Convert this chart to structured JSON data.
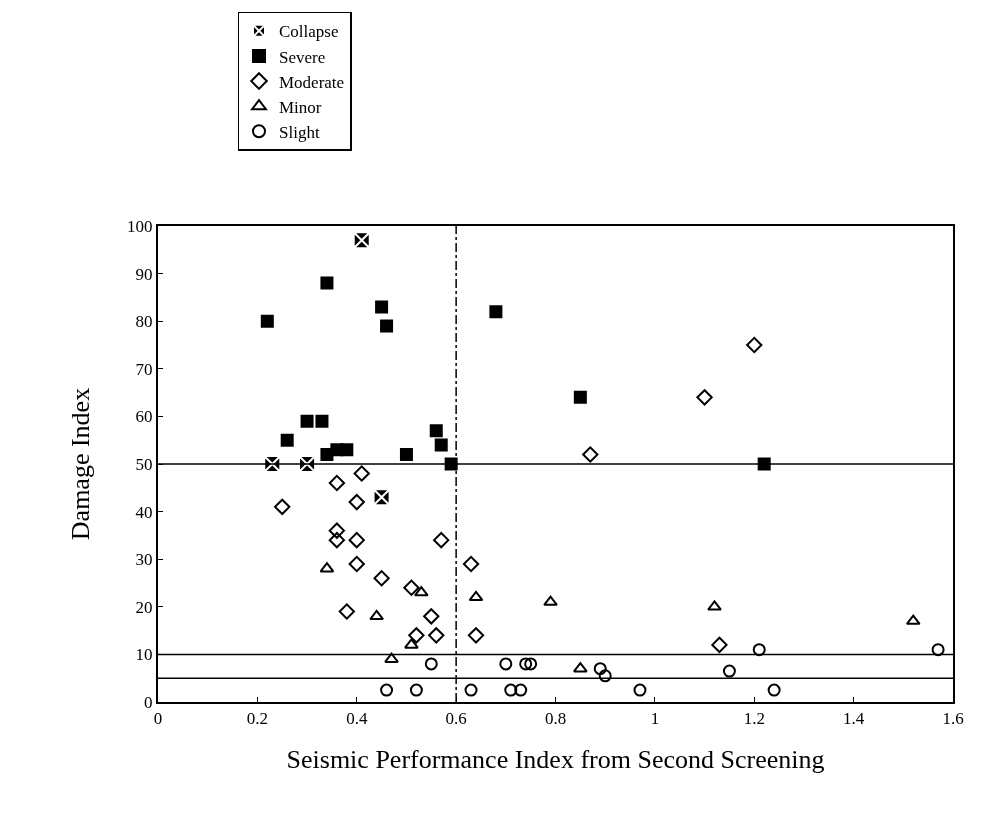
{
  "chart_data": {
    "type": "scatter",
    "xlabel": "Seismic Performance Index from Second Screening",
    "ylabel": "Damage Index",
    "xlim": [
      0,
      1.6
    ],
    "xticks": [
      0,
      0.2,
      0.4,
      0.6,
      0.8,
      1,
      1.2,
      1.4,
      1.6
    ],
    "ylim": [
      0,
      100
    ],
    "yticks": [
      0,
      10,
      20,
      30,
      40,
      50,
      60,
      70,
      80,
      90,
      100
    ],
    "legend": "top left",
    "ref_lines": [
      {
        "axis": "y",
        "value": 50,
        "color": "#000000",
        "line_style": "solid"
      },
      {
        "axis": "y",
        "value": 10,
        "color": "#000000",
        "line_style": "solid"
      },
      {
        "axis": "y",
        "value": 5,
        "color": "#000000",
        "line_style": "solid"
      },
      {
        "axis": "x",
        "value": 0.6,
        "color": "#000000",
        "line_style": "dashdot"
      }
    ],
    "series": [
      {
        "name": "Collapse",
        "color": "#000000",
        "marker": "cross",
        "x": [
          0.41,
          0.23,
          0.3,
          0.45
        ],
        "values": [
          97,
          50,
          50,
          43
        ]
      },
      {
        "name": "Severe",
        "color": "#000000",
        "marker": "square",
        "x": [
          0.22,
          0.34,
          0.45,
          0.46,
          0.3,
          0.33,
          0.26,
          0.34,
          0.36,
          0.38,
          0.5,
          0.56,
          0.57,
          0.59,
          0.68,
          0.85,
          1.22
        ],
        "values": [
          80,
          88,
          83,
          79,
          59,
          59,
          55,
          52,
          53,
          53,
          52,
          57,
          54,
          50,
          82,
          64,
          50
        ]
      },
      {
        "name": "Moderate",
        "color": "#000000",
        "marker": "diamond",
        "x": [
          0.87,
          1.1,
          1.2,
          0.41,
          0.36,
          0.4,
          0.25,
          0.36,
          0.36,
          0.4,
          0.57,
          0.4,
          0.45,
          0.51,
          0.38,
          0.55,
          0.52,
          0.56,
          0.63,
          0.64,
          1.13
        ],
        "values": [
          52,
          64,
          75,
          48,
          46,
          42,
          41,
          36,
          34,
          34,
          34,
          29,
          26,
          24,
          19,
          18,
          14,
          14,
          29,
          14,
          12
        ]
      },
      {
        "name": "Minor",
        "color": "#000000",
        "marker": "triangle",
        "x": [
          0.34,
          0.44,
          0.53,
          0.51,
          0.47,
          0.64,
          0.79,
          1.12,
          1.52,
          0.85
        ],
        "values": [
          28,
          18,
          23,
          12,
          9,
          22,
          21,
          20,
          17,
          7
        ]
      },
      {
        "name": "Slight",
        "color": "#000000",
        "marker": "circle",
        "x": [
          0.55,
          0.46,
          0.52,
          1.21,
          1.57,
          0.7,
          0.74,
          0.75,
          0.89,
          0.9,
          1.15,
          0.63,
          0.71,
          0.73,
          0.97,
          1.24
        ],
        "values": [
          8,
          2.5,
          2.5,
          11,
          11,
          8,
          8,
          8,
          7,
          5.5,
          6.5,
          2.5,
          2.5,
          2.5,
          2.5,
          2.5
        ]
      }
    ]
  }
}
